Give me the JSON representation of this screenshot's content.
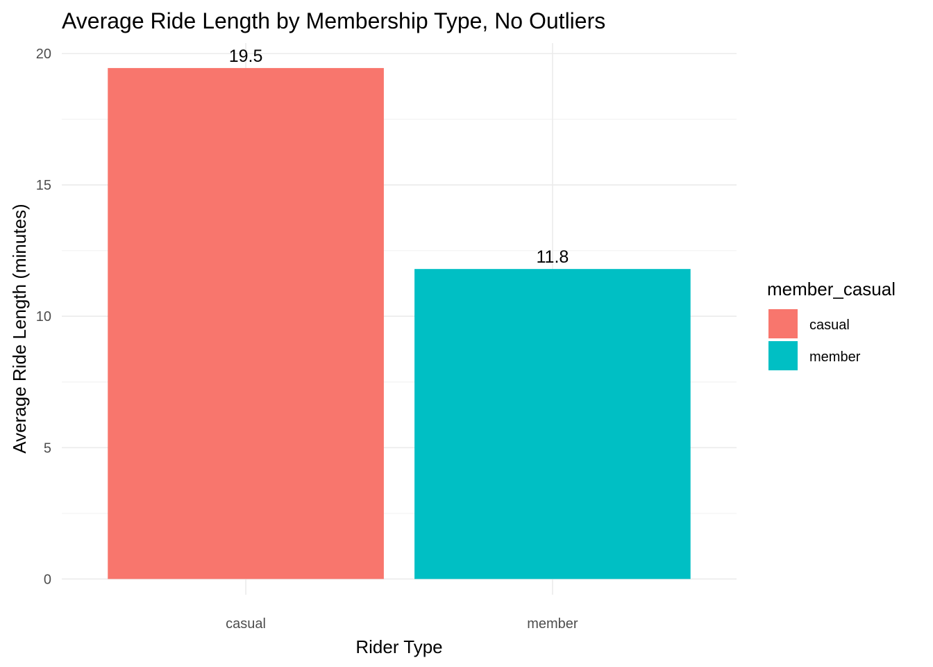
{
  "chart_data": {
    "type": "bar",
    "title": "Average Ride Length by Membership Type, No Outliers",
    "xlabel": "Rider Type",
    "ylabel": "Average Ride Length (minutes)",
    "categories": [
      "casual",
      "member"
    ],
    "values": [
      19.45,
      11.8
    ],
    "data_labels": [
      "19.5",
      "11.8"
    ],
    "colors": [
      "#F8766D",
      "#00BFC4"
    ],
    "ylim": [
      -0.6,
      20.4
    ],
    "yticks": [
      0,
      5,
      10,
      15,
      20
    ],
    "ytick_labels": [
      "0",
      "5",
      "10",
      "15",
      "20"
    ],
    "grid": true,
    "legend": {
      "title": "member_casual",
      "placement": "right",
      "entries": [
        {
          "label": "casual",
          "color": "#F8766D"
        },
        {
          "label": "member",
          "color": "#00BFC4"
        }
      ]
    }
  }
}
